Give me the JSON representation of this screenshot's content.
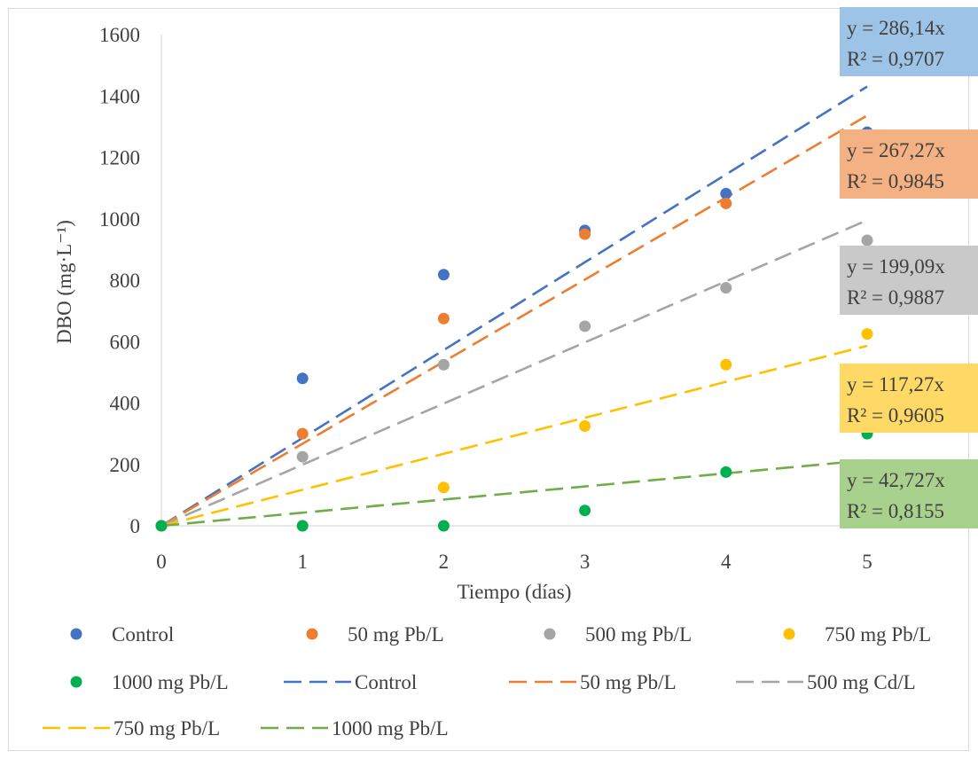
{
  "chart_data": {
    "type": "scatter",
    "xlabel": "Tiempo (días)",
    "ylabel": "DBO (mg·L⁻¹)",
    "xlim": [
      0,
      5
    ],
    "ylim": [
      0,
      1600
    ],
    "x_ticks": [
      "0",
      "1",
      "2",
      "3",
      "4",
      "5"
    ],
    "y_ticks": [
      "0",
      "200",
      "400",
      "600",
      "800",
      "1000",
      "1200",
      "1400",
      "1600"
    ],
    "grid": false,
    "legend_position": "bottom",
    "series": [
      {
        "name": "Control",
        "color": "#4472C4",
        "x": [
          0,
          1,
          2,
          3,
          4,
          5
        ],
        "y": [
          0,
          480,
          818,
          962,
          1082,
          1282
        ]
      },
      {
        "name": "50 mg Pb/L",
        "color": "#ED7D31",
        "x": [
          0,
          1,
          2,
          3,
          4,
          5
        ],
        "y": [
          0,
          300,
          675,
          950,
          1050,
          1150
        ]
      },
      {
        "name": "500 mg Pb/L",
        "color": "#A5A5A5",
        "x": [
          0,
          1,
          2,
          3,
          4,
          5
        ],
        "y": [
          0,
          225,
          525,
          650,
          775,
          930
        ]
      },
      {
        "name": "750 mg Pb/L",
        "color": "#FFC000",
        "x": [
          0,
          1,
          2,
          3,
          4,
          5
        ],
        "y": [
          0,
          0,
          125,
          325,
          525,
          625
        ]
      },
      {
        "name": "1000 mg Pb/L",
        "color": "#00B050",
        "x": [
          0,
          1,
          2,
          3,
          4,
          5
        ],
        "y": [
          0,
          0,
          0,
          50,
          175,
          300
        ]
      }
    ],
    "trendlines": [
      {
        "name": "Control",
        "color": "#4472C4",
        "slope": 286.14,
        "equation": "y = 286,14x",
        "r2": "R² = 0,9707",
        "label_bg": "#9DC3E6"
      },
      {
        "name": "50 mg Pb/L",
        "color": "#ED7D31",
        "slope": 267.27,
        "equation": "y = 267,27x",
        "r2": "R² = 0,9845",
        "label_bg": "#F4B183"
      },
      {
        "name": "500 mg Cd/L",
        "color": "#A5A5A5",
        "slope": 199.09,
        "equation": "y = 199,09x",
        "r2": "R² = 0,9887",
        "label_bg": "#C9C9C9"
      },
      {
        "name": "750 mg Pb/L",
        "color": "#FFC000",
        "slope": 117.27,
        "equation": "y = 117,27x",
        "r2": "R² = 0,9605",
        "label_bg": "#FFD966"
      },
      {
        "name": "1000 mg Pb/L",
        "color": "#70AD47",
        "slope": 42.727,
        "equation": "y = 42,727x",
        "r2": "R² = 0,8155",
        "label_bg": "#A9D18E"
      }
    ]
  },
  "legend": [
    {
      "label": "Control",
      "kind": "marker",
      "color": "#4472C4"
    },
    {
      "label": "50 mg Pb/L",
      "kind": "marker",
      "color": "#ED7D31"
    },
    {
      "label": "500 mg Pb/L",
      "kind": "marker",
      "color": "#A5A5A5"
    },
    {
      "label": "750 mg Pb/L",
      "kind": "marker",
      "color": "#FFC000"
    },
    {
      "label": "1000 mg Pb/L",
      "kind": "marker",
      "color": "#00B050"
    },
    {
      "label": "Control",
      "kind": "line",
      "color": "#4472C4"
    },
    {
      "label": "50 mg Pb/L",
      "kind": "line",
      "color": "#ED7D31"
    },
    {
      "label": "500 mg Cd/L",
      "kind": "line",
      "color": "#A5A5A5"
    },
    {
      "label": "750 mg Pb/L",
      "kind": "line",
      "color": "#FFC000"
    },
    {
      "label": "1000 mg Pb/L",
      "kind": "line",
      "color": "#70AD47"
    }
  ]
}
